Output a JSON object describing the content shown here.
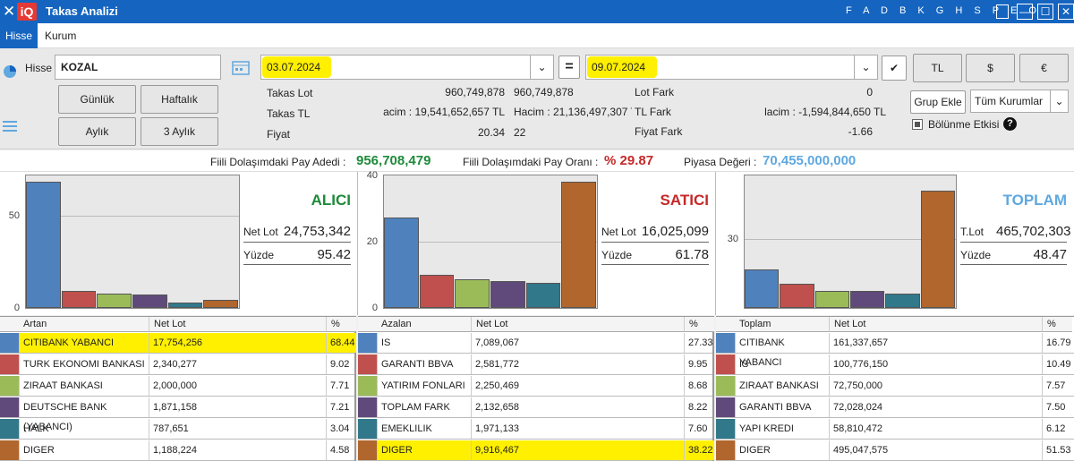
{
  "window": {
    "close": "✕",
    "logo": "iQ",
    "title": "Takas Analizi",
    "letters": "F A D B K G H S P E O",
    "btn_min": "—",
    "btn_max": "☐",
    "btn_close": "✕"
  },
  "menu": {
    "tabs": [
      "Hisse",
      "Kurum"
    ]
  },
  "filter": {
    "hisse_label": "Hisse",
    "hisse_value": "KOZAL",
    "date_from": "03.07.2024",
    "date_to": "09.07.2024",
    "equals": "=",
    "period_buttons": [
      "Günlük",
      "Haftalık",
      "Aylık",
      "3 Aylık"
    ],
    "currency_buttons": [
      "TL",
      "$",
      "€"
    ],
    "grup_ekle": "Grup Ekle",
    "kurum_select": "Tüm Kurumlar",
    "bolunme": "Bölünme Etkisi",
    "help": "?"
  },
  "stats": {
    "takas_lot_label": "Takas Lot",
    "takas_lot_v1": "960,749,878",
    "takas_lot_v2": "960,749,878",
    "takas_tl_label": "Takas TL",
    "takas_tl_v1": "acim : 19,541,652,657 TL",
    "takas_tl_v2": "Hacim : 21,136,497,307 T",
    "fiyat_label": "Fiyat",
    "fiyat_v1": "20.34",
    "fiyat_v2": "22",
    "lot_fark_label": "Lot Fark",
    "lot_fark_v": "0",
    "tl_fark_label": "TL Fark",
    "tl_fark_v": "lacim : -1,594,844,650 TL",
    "fiyat_fark_label": "Fiyat Fark",
    "fiyat_fark_v": "-1.66"
  },
  "info": {
    "fiili_adet_label": "Fiili Dolaşımdaki Pay Adedi :",
    "fiili_adet": "956,708,479",
    "fiili_oran_label": "Fiili Dolaşımdaki Pay Oranı :",
    "fiili_oran": "% 29.87",
    "piyasa_label": "Piyasa Değeri :",
    "piyasa": "70,455,000,000"
  },
  "colors": {
    "blue": "#4f81bd",
    "red": "#c0504d",
    "green": "#9bbb59",
    "purple": "#604a7b",
    "teal": "#31788a",
    "orange": "#b0662c",
    "alici": "#1e8a3a",
    "satici": "#c62828",
    "toplam": "#5fa8e0",
    "highlight": "#fff000"
  },
  "chart_data": [
    {
      "type": "bar",
      "title": "ALICI",
      "net_lot_label": "Net Lot",
      "net_lot": "24,753,342",
      "yuzde_label": "Yüzde",
      "yuzde": "95.42",
      "ylim": [
        0,
        72
      ],
      "yticks": [
        "50",
        "0"
      ],
      "categories": [
        "CITIBANK YABANCI",
        "TURK EKONOMI BANKASI",
        "ZIRAAT BANKASI",
        "DEUTSCHE BANK (YABANCI)",
        "HALK",
        "DIGER"
      ],
      "values": [
        68.44,
        9.02,
        7.71,
        7.21,
        3.04,
        4.58
      ]
    },
    {
      "type": "bar",
      "title": "SATICI",
      "net_lot_label": "Net Lot",
      "net_lot": "16,025,099",
      "yuzde_label": "Yüzde",
      "yuzde": "61.78",
      "ylim": [
        0,
        40
      ],
      "yticks": [
        "40",
        "20",
        "0"
      ],
      "categories": [
        "IS",
        "GARANTI BBVA",
        "YATIRIM FONLARI",
        "TOPLAM FARK",
        "EMEKLILIK FONLARI",
        "DIGER"
      ],
      "values": [
        27.33,
        9.95,
        8.68,
        8.22,
        7.6,
        38.22
      ]
    },
    {
      "type": "bar",
      "title": "TOPLAM",
      "net_lot_label": "T.Lot",
      "net_lot": "465,702,303",
      "yuzde_label": "Yüzde",
      "yuzde": "48.47",
      "ylim": [
        0,
        58
      ],
      "yticks": [
        "30"
      ],
      "categories": [
        "CITIBANK YABANCI",
        "IS",
        "ZIRAAT BANKASI",
        "GARANTI BBVA",
        "YAPI KREDI",
        "DIGER"
      ],
      "values": [
        16.79,
        10.49,
        7.57,
        7.5,
        6.12,
        51.53
      ]
    }
  ],
  "tables": [
    {
      "headers": [
        "Artan",
        "Net Lot",
        "%"
      ],
      "rows": [
        [
          "CITIBANK YABANCI",
          "17,754,256",
          "68.44"
        ],
        [
          "TURK EKONOMI BANKASI",
          "2,340,277",
          "9.02"
        ],
        [
          "ZIRAAT BANKASI",
          "2,000,000",
          "7.71"
        ],
        [
          "DEUTSCHE BANK (YABANCI)",
          "1,871,158",
          "7.21"
        ],
        [
          "HALK",
          "787,651",
          "3.04"
        ],
        [
          "DIGER",
          "1,188,224",
          "4.58"
        ]
      ]
    },
    {
      "headers": [
        "Azalan",
        "Net Lot",
        "%"
      ],
      "rows": [
        [
          "IS",
          "7,089,067",
          "27.33"
        ],
        [
          "GARANTI BBVA",
          "2,581,772",
          "9.95"
        ],
        [
          "YATIRIM FONLARI",
          "2,250,469",
          "8.68"
        ],
        [
          "TOPLAM FARK",
          "2,132,658",
          "8.22"
        ],
        [
          "EMEKLILIK FONLARI",
          "1,971,133",
          "7.60"
        ],
        [
          "DIGER",
          "9,916,467",
          "38.22"
        ]
      ]
    },
    {
      "headers": [
        "Toplam",
        "Net Lot",
        "%"
      ],
      "rows": [
        [
          "CITIBANK YABANCI",
          "161,337,657",
          "16.79"
        ],
        [
          "IS",
          "100,776,150",
          "10.49"
        ],
        [
          "ZIRAAT BANKASI",
          "72,750,000",
          "7.57"
        ],
        [
          "GARANTI BBVA",
          "72,028,024",
          "7.50"
        ],
        [
          "YAPI KREDI",
          "58,810,472",
          "6.12"
        ],
        [
          "DIGER",
          "495,047,575",
          "51.53"
        ]
      ]
    }
  ]
}
